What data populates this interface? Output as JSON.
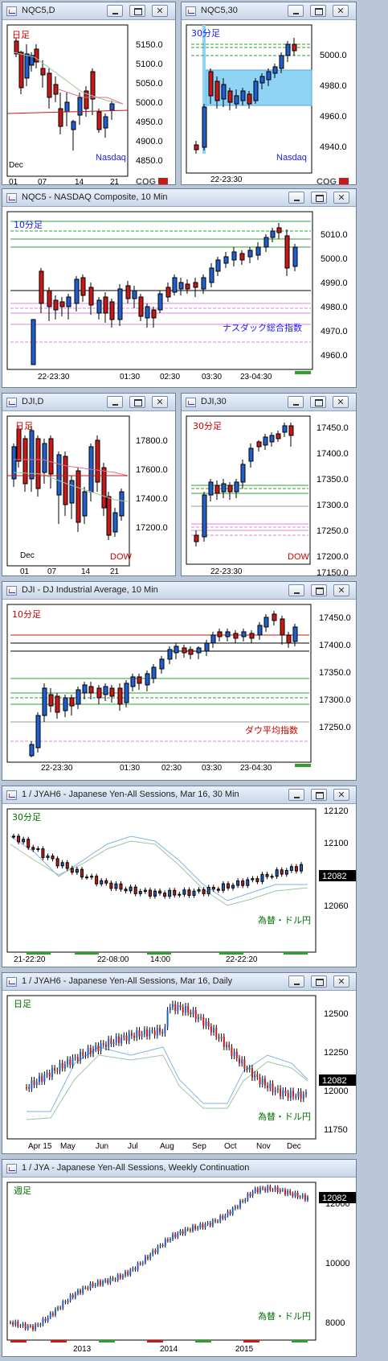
{
  "windows": [
    {
      "id": "w1",
      "title": "NQC5,D",
      "period_label": "日足",
      "series_label": "Nasdaq",
      "y_ticks": [
        "5150.0",
        "5100.0",
        "5050.0",
        "5000.0",
        "4950.0",
        "4900.0",
        "4850.0"
      ],
      "x_ticks": [
        "01",
        "07",
        "14",
        "21"
      ],
      "x_sub": "Dec",
      "label_colors": {
        "period": "#d00000",
        "series": "#1a1aff"
      }
    },
    {
      "id": "w2",
      "title": "NQC5,30",
      "period_label": "30分足",
      "series_label": "Nasdaq",
      "y_ticks": [
        "5000.0",
        "4980.0",
        "4960.0",
        "4940.0"
      ],
      "x_ticks": [
        "22-23:30"
      ],
      "label_colors": {
        "period": "#1a1aff",
        "series": "#1a1aff"
      }
    },
    {
      "id": "w3",
      "title": "NQC5 - NASDAQ Composite, 10 Min",
      "period_label": "10分足",
      "series_label": "ナスダック総合指数",
      "y_ticks": [
        "5010.0",
        "5000.0",
        "4990.0",
        "4980.0",
        "4970.0",
        "4960.0"
      ],
      "x_ticks": [
        "22-23:30",
        "01:30",
        "02:30",
        "03:30",
        "23-04:30"
      ],
      "label_colors": {
        "period": "#1a1aff",
        "series": "#1a1aff"
      }
    },
    {
      "id": "w4",
      "title": "DJI,D",
      "period_label": "日足",
      "series_label": "DOW",
      "y_ticks": [
        "17800.0",
        "17600.0",
        "17400.0",
        "17200.0"
      ],
      "x_ticks": [
        "01",
        "07",
        "14",
        "21"
      ],
      "x_sub": "Dec",
      "label_colors": {
        "period": "#d00000",
        "series": "#d00000"
      }
    },
    {
      "id": "w5",
      "title": "DJI,30",
      "period_label": "30分足",
      "series_label": "DOW",
      "y_ticks": [
        "17450.0",
        "17400.0",
        "17350.0",
        "17300.0",
        "17250.0",
        "17200.0",
        "17150.0"
      ],
      "x_ticks": [
        "22-23:30"
      ],
      "label_colors": {
        "period": "#d00000",
        "series": "#d00000"
      }
    },
    {
      "id": "w6",
      "title": "DJI - DJ Industrial Average, 10 Min",
      "period_label": "10分足",
      "series_label": "ダウ平均指数",
      "y_ticks": [
        "17450.0",
        "17400.0",
        "17350.0",
        "17300.0",
        "17250.0"
      ],
      "x_ticks": [
        "22-23:30",
        "01:30",
        "02:30",
        "03:30",
        "23-04:30"
      ],
      "label_colors": {
        "period": "#d00000",
        "series": "#d00000"
      }
    },
    {
      "id": "w7",
      "title": "1 / JYAH6 - Japanese Yen-All Sessions, Mar 16, 30 Min",
      "period_label": "30分足",
      "series_label": "為替・ドル円",
      "y_ticks": [
        "12120",
        "12100",
        "12080",
        "12060"
      ],
      "price_tag": "12082",
      "x_ticks": [
        "21-22:20",
        "22-08:00",
        "14:00",
        "22-22:20"
      ],
      "label_colors": {
        "period": "#007000",
        "series": "#007000"
      }
    },
    {
      "id": "w8",
      "title": "1 / JYAH6 - Japanese Yen-All Sessions, Mar 16, Daily",
      "period_label": "日足",
      "series_label": "為替・ドル円",
      "y_ticks": [
        "12500",
        "12250",
        "12000",
        "11750"
      ],
      "price_tag": "12082",
      "x_ticks": [
        "Apr 15",
        "May",
        "Jun",
        "Jul",
        "Aug",
        "Sep",
        "Oct",
        "Nov",
        "Dec"
      ],
      "label_colors": {
        "period": "#007000",
        "series": "#007000"
      }
    },
    {
      "id": "w9",
      "title": "1 / JYA - Japanese Yen-All Sessions, Weekly Continuation",
      "period_label": "週足",
      "series_label": "為替・ドル円",
      "y_ticks": [
        "12000",
        "10000",
        "8000"
      ],
      "price_tag": "12082",
      "x_ticks": [
        "2013",
        "2014",
        "2015"
      ],
      "label_colors": {
        "period": "#007000",
        "series": "#007000"
      }
    }
  ],
  "brand": "CQG",
  "colors": {
    "up": "#1f5fd0",
    "down": "#c81818",
    "accent_box": "#8fd3f5"
  }
}
